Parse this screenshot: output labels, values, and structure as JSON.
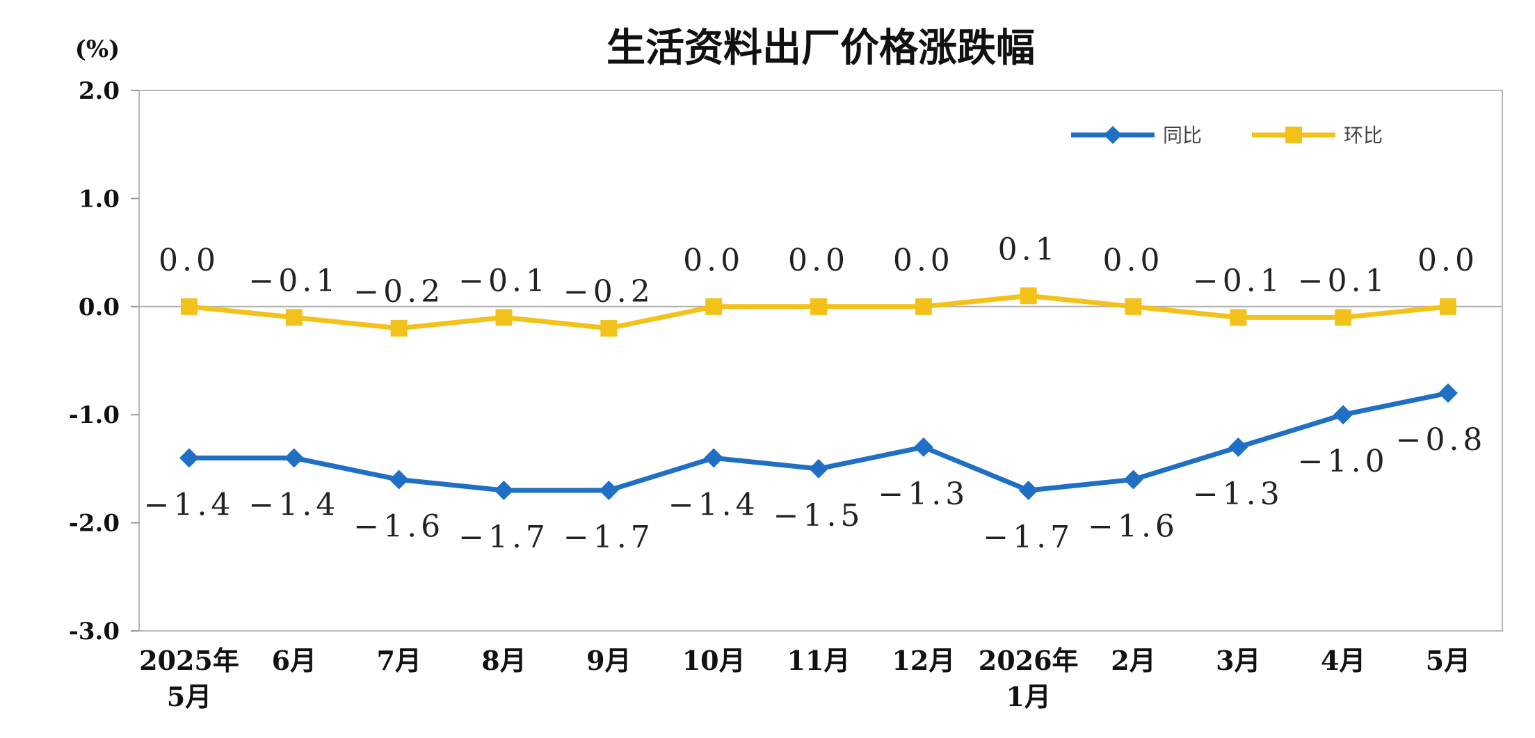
{
  "chart_data": {
    "type": "line",
    "title": "生活资料出厂价格涨跌幅",
    "unit_label": "(%)",
    "ylim": [
      -3.0,
      2.0
    ],
    "yticks": [
      "2.0",
      "1.0",
      "0.0",
      "-1.0",
      "-2.0",
      "-3.0"
    ],
    "yticks_values": [
      2.0,
      1.0,
      0.0,
      -1.0,
      -2.0,
      -3.0
    ],
    "categories": [
      [
        "2025年",
        "5月"
      ],
      [
        "6月"
      ],
      [
        "7月"
      ],
      [
        "8月"
      ],
      [
        "9月"
      ],
      [
        "10月"
      ],
      [
        "11月"
      ],
      [
        "12月"
      ],
      [
        "2026年",
        "1月"
      ],
      [
        "2月"
      ],
      [
        "3月"
      ],
      [
        "4月"
      ],
      [
        "5月"
      ]
    ],
    "series": [
      {
        "name": "同比",
        "color": "#1f6fc4",
        "marker": "diamond",
        "values": [
          -1.4,
          -1.4,
          -1.6,
          -1.7,
          -1.7,
          -1.4,
          -1.5,
          -1.3,
          -1.7,
          -1.6,
          -1.3,
          -1.0,
          -0.8
        ],
        "labels": [
          "−1.4",
          "−1.4",
          "−1.6",
          "−1.7",
          "−1.7",
          "−1.4",
          "−1.5",
          "−1.3",
          "−1.7",
          "−1.6",
          "−1.3",
          "−1.0",
          "−0.8"
        ]
      },
      {
        "name": "环比",
        "color": "#f2c21b",
        "marker": "square",
        "values": [
          0.0,
          -0.1,
          -0.2,
          -0.1,
          -0.2,
          0.0,
          0.0,
          0.0,
          0.1,
          0.0,
          -0.1,
          -0.1,
          0.0
        ],
        "labels": [
          "0.0",
          "−0.1",
          "−0.2",
          "−0.1",
          "−0.2",
          "0.0",
          "0.0",
          "0.0",
          "0.1",
          "0.0",
          "−0.1",
          "−0.1",
          "0.0"
        ]
      }
    ],
    "legend_position": "top-right",
    "grid": false
  }
}
